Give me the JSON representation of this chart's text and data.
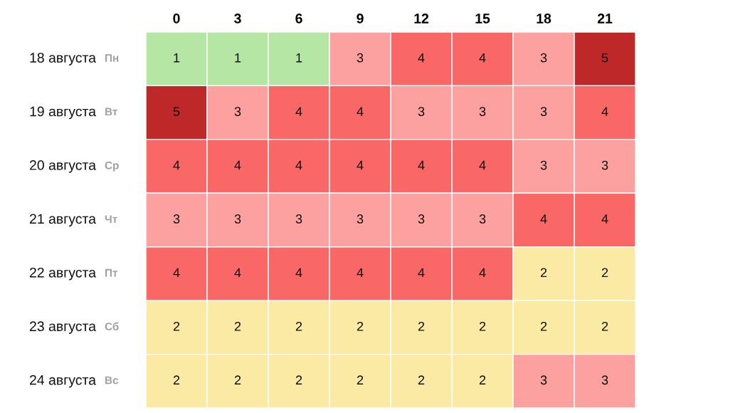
{
  "chart_data": {
    "type": "heatmap",
    "categories": [
      "0",
      "3",
      "6",
      "9",
      "12",
      "15",
      "18",
      "21"
    ],
    "y_categories": [
      "18 августа",
      "19 августа",
      "20 августа",
      "21 августа",
      "22 августа",
      "23 августа",
      "24 августа"
    ],
    "y2_categories": [
      "Пн",
      "Вт",
      "Ср",
      "Чт",
      "Пт",
      "Сб",
      "Вс"
    ],
    "cells": [
      [
        1,
        1,
        1,
        3,
        4,
        4,
        3,
        5
      ],
      [
        5,
        3,
        4,
        4,
        3,
        3,
        3,
        4
      ],
      [
        4,
        4,
        4,
        4,
        4,
        4,
        3,
        3
      ],
      [
        3,
        3,
        3,
        3,
        3,
        3,
        4,
        4
      ],
      [
        4,
        4,
        4,
        4,
        4,
        4,
        2,
        2
      ],
      [
        2,
        2,
        2,
        2,
        2,
        2,
        2,
        2
      ],
      [
        2,
        2,
        2,
        2,
        2,
        2,
        3,
        3
      ]
    ],
    "colors": [
      "#b6e6a3",
      "#fbeaa3",
      "#fca19f",
      "#fa6767",
      "#bf2828"
    ],
    "data_labels": true
  }
}
